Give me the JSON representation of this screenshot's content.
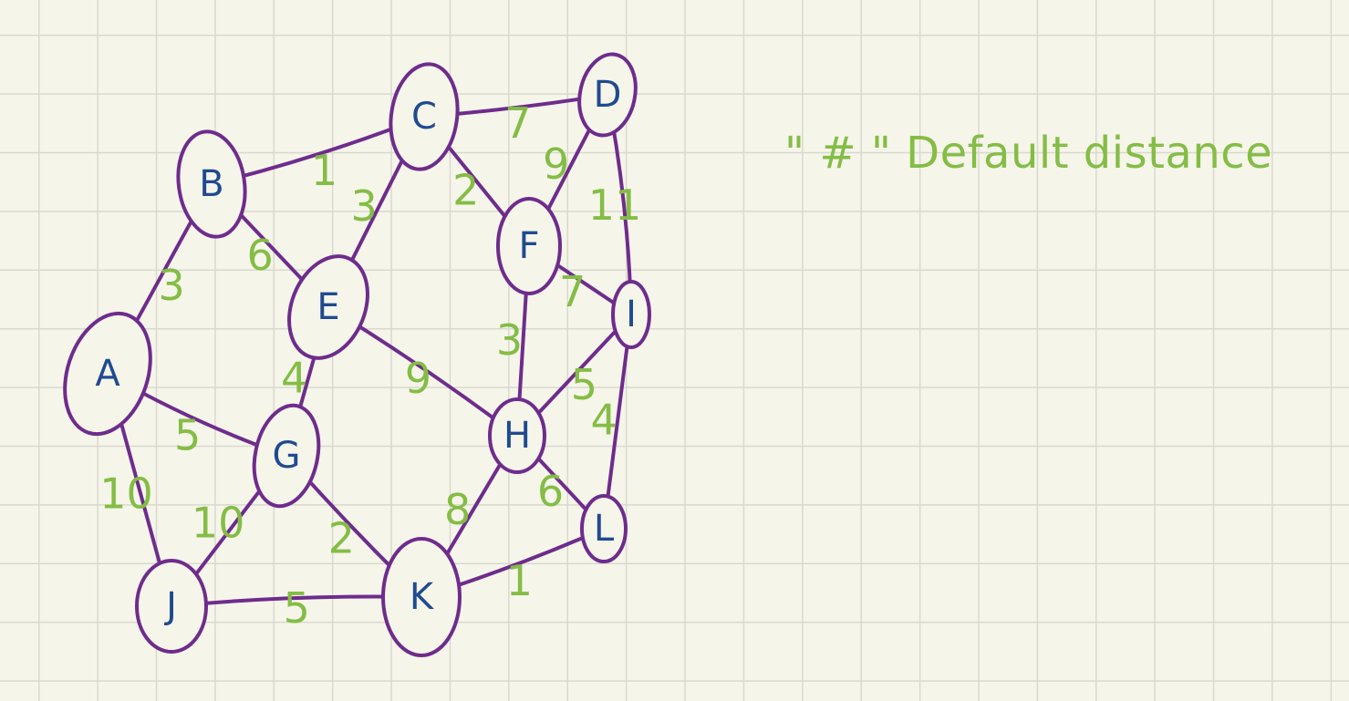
{
  "colors": {
    "edge": "#6e2c8c",
    "node_label": "#1f4b8f",
    "weight": "#84bd45",
    "background": "#f6f5ea",
    "grid": "#d9d9cf"
  },
  "note": {
    "text": "\" # \" Default distance"
  },
  "graph": {
    "nodes": [
      {
        "id": "A",
        "label": "A"
      },
      {
        "id": "B",
        "label": "B"
      },
      {
        "id": "C",
        "label": "C"
      },
      {
        "id": "D",
        "label": "D"
      },
      {
        "id": "E",
        "label": "E"
      },
      {
        "id": "F",
        "label": "F"
      },
      {
        "id": "G",
        "label": "G"
      },
      {
        "id": "H",
        "label": "H"
      },
      {
        "id": "I",
        "label": "I"
      },
      {
        "id": "J",
        "label": "J"
      },
      {
        "id": "K",
        "label": "K"
      },
      {
        "id": "L",
        "label": "L"
      }
    ],
    "edges": [
      {
        "from": "A",
        "to": "B",
        "weight": "3"
      },
      {
        "from": "A",
        "to": "G",
        "weight": "5"
      },
      {
        "from": "A",
        "to": "J",
        "weight": "10"
      },
      {
        "from": "B",
        "to": "C",
        "weight": "1"
      },
      {
        "from": "B",
        "to": "E",
        "weight": "6"
      },
      {
        "from": "C",
        "to": "D",
        "weight": "7"
      },
      {
        "from": "C",
        "to": "E",
        "weight": "3"
      },
      {
        "from": "C",
        "to": "F",
        "weight": "2"
      },
      {
        "from": "D",
        "to": "F",
        "weight": "9"
      },
      {
        "from": "D",
        "to": "I",
        "weight": "11"
      },
      {
        "from": "E",
        "to": "G",
        "weight": "4"
      },
      {
        "from": "E",
        "to": "H",
        "weight": "9"
      },
      {
        "from": "F",
        "to": "I",
        "weight": "7"
      },
      {
        "from": "F",
        "to": "H",
        "weight": "3"
      },
      {
        "from": "G",
        "to": "J",
        "weight": "10"
      },
      {
        "from": "G",
        "to": "K",
        "weight": "2"
      },
      {
        "from": "H",
        "to": "I",
        "weight": "5"
      },
      {
        "from": "H",
        "to": "K",
        "weight": "8"
      },
      {
        "from": "H",
        "to": "L",
        "weight": "6"
      },
      {
        "from": "I",
        "to": "L",
        "weight": "4"
      },
      {
        "from": "J",
        "to": "K",
        "weight": "5"
      },
      {
        "from": "K",
        "to": "L",
        "weight": "1"
      }
    ]
  }
}
